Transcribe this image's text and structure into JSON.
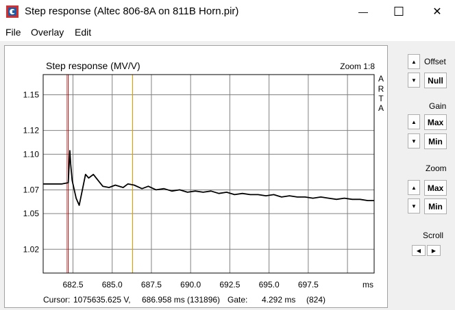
{
  "window": {
    "title": "Step response (Altec 806-8A on 811B Horn.pir)",
    "minimize_glyph": "—",
    "maximize_glyph": "☐",
    "close_glyph": "✕",
    "icon": "arta-app-icon"
  },
  "menu": {
    "items": [
      "File",
      "Overlay",
      "Edit"
    ]
  },
  "plot": {
    "title": "Step response (MV/V)",
    "zoom_label": "Zoom 1:8",
    "watermark": [
      "A",
      "R",
      "T",
      "A"
    ],
    "x_unit": "ms",
    "cursor_line": {
      "label": "Cursor:",
      "value": "1075635.625 V,",
      "time": "686.958 ms",
      "sample": "(131896)",
      "gate_label": "Gate:",
      "gate_value": "4.292 ms",
      "gate_sample": "(824)"
    },
    "colors": {
      "trace": "#000000",
      "grid": "#808080",
      "red_marker": "#b00000",
      "yellow_marker": "#d4a017"
    }
  },
  "chart_data": {
    "type": "line",
    "title": "Step response (MV/V)",
    "xlabel": "ms",
    "ylabel": "",
    "xlim": [
      680.6,
      701.7
    ],
    "ylim": [
      1.0,
      1.167
    ],
    "x_ticks": [
      682.5,
      685.0,
      687.5,
      690.0,
      692.5,
      695.0,
      697.5
    ],
    "x_tick_labels": [
      "682.5",
      "685.0",
      "687.5",
      "690.0",
      "692.5",
      "695.0",
      "697.5"
    ],
    "y_ticks": [
      1.02,
      1.05,
      1.07,
      1.1,
      1.12,
      1.15
    ],
    "y_tick_labels": [
      "1.02",
      "1.05",
      "1.07",
      "1.10",
      "1.12",
      "1.15"
    ],
    "grid": true,
    "markers": {
      "red_ms": 682.2,
      "yellow_ms": 686.3
    },
    "series": [
      {
        "x": [
          680.6,
          681.2,
          681.8,
          682.2,
          682.3,
          682.35,
          682.45,
          682.55,
          682.7,
          682.9,
          683.1,
          683.3,
          683.5,
          683.8,
          684.1,
          684.4,
          684.8,
          685.2,
          685.7,
          686.0,
          686.4,
          686.9,
          687.3,
          687.8,
          688.3,
          688.8,
          689.3,
          689.8,
          690.3,
          690.8,
          691.3,
          691.8,
          692.3,
          692.8,
          693.3,
          693.8,
          694.3,
          694.8,
          695.3,
          695.8,
          696.3,
          696.8,
          697.3,
          697.8,
          698.3,
          698.8,
          699.3,
          699.8,
          700.3,
          700.8,
          701.3,
          701.7
        ],
        "y": [
          1.075,
          1.075,
          1.075,
          1.076,
          1.103,
          1.092,
          1.078,
          1.072,
          1.063,
          1.057,
          1.07,
          1.083,
          1.08,
          1.083,
          1.078,
          1.073,
          1.072,
          1.074,
          1.072,
          1.075,
          1.074,
          1.071,
          1.073,
          1.07,
          1.071,
          1.069,
          1.07,
          1.068,
          1.069,
          1.068,
          1.069,
          1.067,
          1.068,
          1.066,
          1.067,
          1.066,
          1.066,
          1.065,
          1.066,
          1.064,
          1.065,
          1.064,
          1.064,
          1.063,
          1.064,
          1.063,
          1.062,
          1.063,
          1.062,
          1.062,
          1.061,
          1.061
        ]
      }
    ]
  },
  "sidebar": {
    "offset_label": "Offset",
    "null_label": "Null",
    "gain_label": "Gain",
    "zoom_label": "Zoom",
    "max_label": "Max",
    "min_label": "Min",
    "scroll_label": "Scroll",
    "up_glyph": "▲",
    "down_glyph": "▼",
    "left_glyph": "◀",
    "right_glyph": "▶"
  }
}
